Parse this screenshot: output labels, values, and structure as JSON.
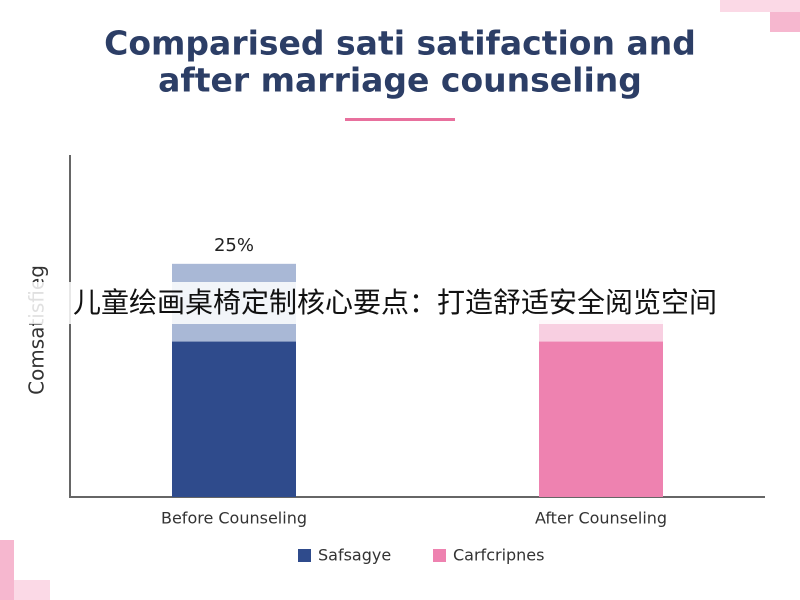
{
  "chart_data": {
    "type": "stacked_bar",
    "title": [
      "Comparised sati satifaction and",
      "after marriage counseling"
    ],
    "y_label": "Comsatisfieg",
    "categories": [
      "Before Counseling",
      "After Counseling"
    ],
    "series": [
      {
        "name": "Safsagye",
        "color": "#2f4b8c",
        "values": [
          50,
          null
        ]
      },
      {
        "name": "Carfcripnes",
        "color": "#ee82b0",
        "values": [
          null,
          50
        ]
      }
    ],
    "top_segments": {
      "values": [
        25,
        7
      ],
      "colors": [
        "#a9b8d6",
        "#f8cfe1"
      ],
      "value_labels": [
        "25%",
        null
      ]
    },
    "ylim": [
      0,
      110
    ]
  },
  "overlay_text": "儿童绘画桌椅定制核心要点：打造舒适安全阅览空间"
}
